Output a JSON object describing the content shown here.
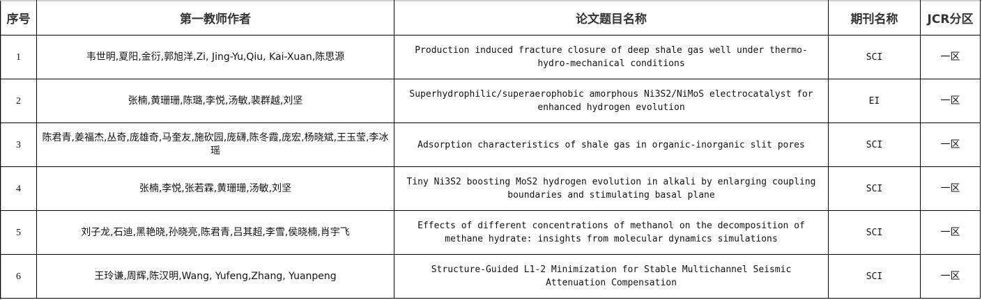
{
  "headers": {
    "index": "序号",
    "authors": "第一教师作者",
    "title": "论文题目名称",
    "journal": "期刊名称",
    "jcr": "JCR分区"
  },
  "rows": [
    {
      "index": "1",
      "authors": "韦世明,夏阳,金衍,郭旭洋,Zi, Jing-Yu,Qiu, Kai-Xuan,陈思源",
      "title": "Production induced fracture closure of deep shale gas well under thermo-hydro-mechanical conditions",
      "journal": "SCI",
      "jcr": "一区"
    },
    {
      "index": "2",
      "authors": "张楠,黄珊珊,陈璐,李悦,汤敏,裴群越,刘坚",
      "title": "Superhydrophilic/superaerophobic amorphous Ni3S2/NiMoS electrocatalyst for enhanced hydrogen evolution",
      "journal": "EI",
      "jcr": "一区"
    },
    {
      "index": "3",
      "authors": "陈君青,姜福杰,丛奇,庞雄奇,马奎友,施砍园,庞礴,陈冬霞,庞宏,杨晓斌,王玉莹,李冰瑶",
      "title": "Adsorption characteristics of shale gas in organic-inorganic slit pores",
      "journal": "SCI",
      "jcr": "一区"
    },
    {
      "index": "4",
      "authors": "张楠,李悦,张若霖,黄珊珊,汤敏,刘坚",
      "title": "Tiny Ni3S2 boosting MoS2 hydrogen evolution in alkali by enlarging coupling boundaries and stimulating basal plane",
      "journal": "SCI",
      "jcr": "一区"
    },
    {
      "index": "5",
      "authors": "刘子龙,石迪,黑艳晓,孙晓亮,陈君青,吕其超,李雪,侯晓楠,肖宇飞",
      "title": "Effects of different concentrations of methanol on the decomposition of methane hydrate: insights from molecular dynamics simulations",
      "journal": "SCI",
      "jcr": "一区"
    },
    {
      "index": "6",
      "authors": "王玲谦,周辉,陈汉明,Wang, Yufeng,Zhang, Yuanpeng",
      "title": "Structure-Guided L1-2 Minimization for Stable Multichannel Seismic Attenuation Compensation",
      "journal": "SCI",
      "jcr": "一区"
    }
  ]
}
